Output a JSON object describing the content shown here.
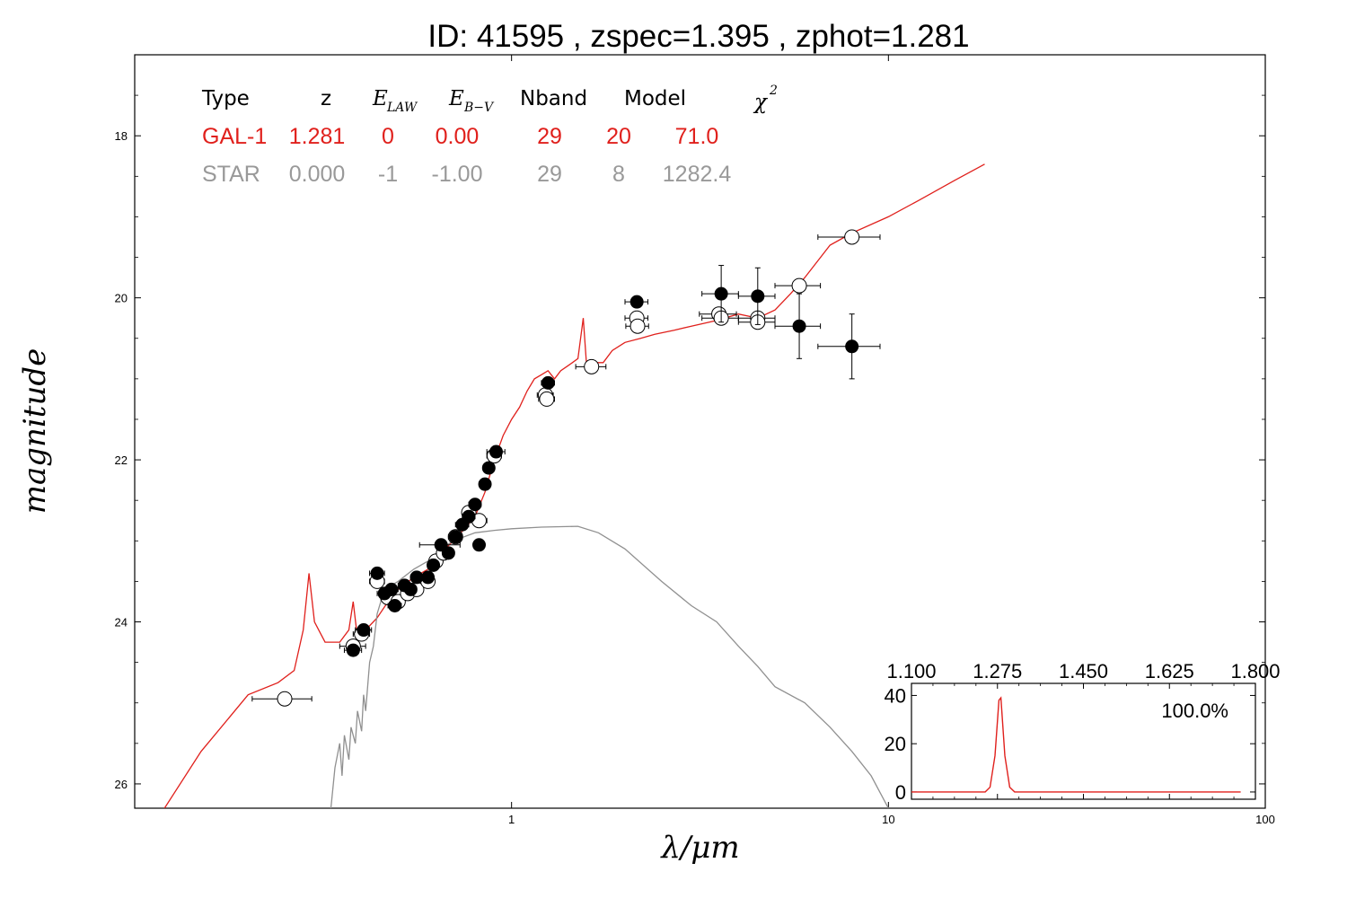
{
  "chart_data": [
    {
      "type": "line",
      "title": "ID:  41595 , zspec=1.395 , zphot=1.281",
      "xlabel": "λ/μm",
      "ylabel": "magnitude",
      "x_scale": "log",
      "xlim": [
        0.1,
        100
      ],
      "ylim": [
        26.3,
        17.0
      ],
      "y_inverted": true,
      "x_tick_labels": [
        "1",
        "10",
        "100"
      ],
      "x_tick_values": [
        1,
        10,
        100
      ],
      "y_tick_labels": [
        "18",
        "20",
        "22",
        "24",
        "26"
      ],
      "y_tick_values": [
        18,
        20,
        22,
        24,
        26
      ],
      "table": {
        "headers": [
          "Type",
          "z",
          "E",
          "E",
          "Nband",
          "Model",
          "χ"
        ],
        "header_subscripts": [
          "LAW",
          "B−V"
        ],
        "header_superscript": "2",
        "rows": [
          {
            "cells": [
              "GAL-1",
              "1.281",
              "0",
              "0.00",
              "29",
              "20",
              "71.0"
            ],
            "color": "#e0201c"
          },
          {
            "cells": [
              "STAR",
              "0.000",
              "-1",
              "-1.00",
              "29",
              "8",
              "1282.4"
            ],
            "color": "#999999"
          }
        ]
      },
      "series": [
        {
          "name": "GAL-1",
          "color": "#e0201c",
          "points": [
            [
              0.12,
              26.3
            ],
            [
              0.15,
              25.6
            ],
            [
              0.2,
              24.9
            ],
            [
              0.24,
              24.75
            ],
            [
              0.265,
              24.6
            ],
            [
              0.28,
              24.1
            ],
            [
              0.29,
              23.4
            ],
            [
              0.3,
              24.0
            ],
            [
              0.32,
              24.25
            ],
            [
              0.35,
              24.25
            ],
            [
              0.37,
              24.1
            ],
            [
              0.38,
              23.75
            ],
            [
              0.39,
              24.2
            ],
            [
              0.41,
              24.1
            ],
            [
              0.44,
              23.95
            ],
            [
              0.47,
              23.75
            ],
            [
              0.5,
              23.6
            ],
            [
              0.55,
              23.45
            ],
            [
              0.6,
              23.35
            ],
            [
              0.65,
              23.15
            ],
            [
              0.7,
              23.0
            ],
            [
              0.75,
              22.85
            ],
            [
              0.8,
              22.7
            ],
            [
              0.85,
              22.4
            ],
            [
              0.9,
              22.0
            ],
            [
              0.95,
              21.7
            ],
            [
              1.0,
              21.5
            ],
            [
              1.05,
              21.35
            ],
            [
              1.1,
              21.15
            ],
            [
              1.15,
              21.0
            ],
            [
              1.2,
              20.95
            ],
            [
              1.25,
              20.9
            ],
            [
              1.3,
              21.0
            ],
            [
              1.35,
              20.9
            ],
            [
              1.4,
              20.85
            ],
            [
              1.45,
              20.8
            ],
            [
              1.5,
              20.75
            ],
            [
              1.55,
              20.25
            ],
            [
              1.58,
              20.8
            ],
            [
              1.65,
              20.8
            ],
            [
              1.75,
              20.8
            ],
            [
              1.85,
              20.65
            ],
            [
              2.0,
              20.55
            ],
            [
              2.2,
              20.5
            ],
            [
              2.4,
              20.45
            ],
            [
              2.7,
              20.4
            ],
            [
              3.0,
              20.35
            ],
            [
              3.5,
              20.28
            ],
            [
              4.0,
              20.2
            ],
            [
              4.5,
              20.25
            ],
            [
              5.0,
              20.15
            ],
            [
              5.5,
              19.95
            ],
            [
              6.0,
              19.75
            ],
            [
              7.0,
              19.35
            ],
            [
              8.0,
              19.2
            ],
            [
              10.0,
              19.0
            ],
            [
              12.0,
              18.8
            ],
            [
              15.0,
              18.55
            ],
            [
              18.0,
              18.35
            ]
          ]
        },
        {
          "name": "STAR",
          "color": "#909090",
          "points": [
            [
              0.33,
              26.4
            ],
            [
              0.34,
              25.8
            ],
            [
              0.35,
              25.5
            ],
            [
              0.355,
              25.9
            ],
            [
              0.36,
              25.4
            ],
            [
              0.37,
              25.7
            ],
            [
              0.375,
              25.3
            ],
            [
              0.385,
              25.5
            ],
            [
              0.39,
              25.1
            ],
            [
              0.4,
              25.35
            ],
            [
              0.405,
              24.9
            ],
            [
              0.41,
              25.1
            ],
            [
              0.42,
              24.5
            ],
            [
              0.43,
              24.3
            ],
            [
              0.44,
              23.9
            ],
            [
              0.46,
              23.6
            ],
            [
              0.5,
              23.5
            ],
            [
              0.55,
              23.35
            ],
            [
              0.6,
              23.25
            ],
            [
              0.65,
              23.1
            ],
            [
              0.7,
              23.0
            ],
            [
              0.8,
              22.9
            ],
            [
              0.9,
              22.87
            ],
            [
              1.0,
              22.85
            ],
            [
              1.2,
              22.83
            ],
            [
              1.5,
              22.82
            ],
            [
              1.7,
              22.9
            ],
            [
              2.0,
              23.1
            ],
            [
              2.5,
              23.5
            ],
            [
              3.0,
              23.8
            ],
            [
              3.5,
              24.0
            ],
            [
              4.0,
              24.3
            ],
            [
              4.5,
              24.55
            ],
            [
              5.0,
              24.8
            ],
            [
              6.0,
              25.0
            ],
            [
              7.0,
              25.3
            ],
            [
              8.0,
              25.6
            ],
            [
              9.0,
              25.9
            ],
            [
              10.0,
              26.3
            ]
          ]
        }
      ],
      "photometry_filled": [
        {
          "x": 0.38,
          "y": 24.35,
          "xerr": 0.02,
          "yerr": 0.05
        },
        {
          "x": 0.405,
          "y": 24.1,
          "xerr": 0.02,
          "yerr": 0.05
        },
        {
          "x": 0.44,
          "y": 23.4,
          "xerr": 0.02,
          "yerr": 0.05
        },
        {
          "x": 0.46,
          "y": 23.65,
          "xerr": 0.02,
          "yerr": 0.05
        },
        {
          "x": 0.48,
          "y": 23.6,
          "xerr": 0.02,
          "yerr": 0.05
        },
        {
          "x": 0.49,
          "y": 23.8,
          "xerr": 0.02,
          "yerr": 0.05
        },
        {
          "x": 0.52,
          "y": 23.55,
          "xerr": 0.02,
          "yerr": 0.05
        },
        {
          "x": 0.54,
          "y": 23.6,
          "xerr": 0.02,
          "yerr": 0.05
        },
        {
          "x": 0.56,
          "y": 23.45,
          "xerr": 0.02,
          "yerr": 0.05
        },
        {
          "x": 0.6,
          "y": 23.45,
          "xerr": 0.02,
          "yerr": 0.05
        },
        {
          "x": 0.62,
          "y": 23.3,
          "xerr": 0.02,
          "yerr": 0.05
        },
        {
          "x": 0.65,
          "y": 23.05,
          "xerr": 0.08,
          "yerr": 0.05
        },
        {
          "x": 0.68,
          "y": 23.15,
          "xerr": 0.02,
          "yerr": 0.05
        },
        {
          "x": 0.71,
          "y": 22.95,
          "xerr": 0.03,
          "yerr": 0.05
        },
        {
          "x": 0.74,
          "y": 22.8,
          "xerr": 0.03,
          "yerr": 0.05
        },
        {
          "x": 0.77,
          "y": 22.7,
          "xerr": 0.03,
          "yerr": 0.05
        },
        {
          "x": 0.8,
          "y": 22.55,
          "xerr": 0.03,
          "yerr": 0.05
        },
        {
          "x": 0.82,
          "y": 23.05,
          "xerr": 0.02,
          "yerr": 0.05
        },
        {
          "x": 0.85,
          "y": 22.3,
          "xerr": 0.03,
          "yerr": 0.05
        },
        {
          "x": 0.87,
          "y": 22.1,
          "xerr": 0.03,
          "yerr": 0.05
        },
        {
          "x": 0.91,
          "y": 21.9,
          "xerr": 0.05,
          "yerr": 0.05
        },
        {
          "x": 1.25,
          "y": 21.05,
          "xerr": 0.05,
          "yerr": 0.05
        },
        {
          "x": 2.15,
          "y": 20.05,
          "xerr": 0.15,
          "yerr": 0.05
        },
        {
          "x": 3.6,
          "y": 19.95,
          "xerr": 0.4,
          "yerr": 0.35
        },
        {
          "x": 4.5,
          "y": 19.98,
          "xerr": 0.5,
          "yerr": 0.35
        },
        {
          "x": 5.8,
          "y": 20.35,
          "xerr": 0.8,
          "yerr": 0.4
        },
        {
          "x": 8.0,
          "y": 20.6,
          "xerr": 1.5,
          "yerr": 0.4
        }
      ],
      "photometry_open": [
        {
          "x": 0.25,
          "y": 24.95,
          "xerr": 0.045
        },
        {
          "x": 0.38,
          "y": 24.3,
          "xerr": 0.03
        },
        {
          "x": 0.4,
          "y": 24.15,
          "xerr": 0.02
        },
        {
          "x": 0.44,
          "y": 23.5,
          "xerr": 0.02
        },
        {
          "x": 0.47,
          "y": 23.7,
          "xerr": 0.02
        },
        {
          "x": 0.5,
          "y": 23.75,
          "xerr": 0.02
        },
        {
          "x": 0.53,
          "y": 23.65,
          "xerr": 0.02
        },
        {
          "x": 0.56,
          "y": 23.6,
          "xerr": 0.02
        },
        {
          "x": 0.6,
          "y": 23.5,
          "xerr": 0.02
        },
        {
          "x": 0.63,
          "y": 23.25,
          "xerr": 0.02
        },
        {
          "x": 0.66,
          "y": 23.15,
          "xerr": 0.02
        },
        {
          "x": 0.71,
          "y": 22.95,
          "xerr": 0.02
        },
        {
          "x": 0.77,
          "y": 22.65,
          "xerr": 0.03
        },
        {
          "x": 0.82,
          "y": 22.75,
          "xerr": 0.04
        },
        {
          "x": 0.9,
          "y": 21.95,
          "xerr": 0.04
        },
        {
          "x": 1.23,
          "y": 21.2,
          "xerr": 0.06
        },
        {
          "x": 1.24,
          "y": 21.25,
          "xerr": 0.06
        },
        {
          "x": 1.63,
          "y": 20.85,
          "xerr": 0.15
        },
        {
          "x": 2.15,
          "y": 20.25,
          "xerr": 0.15
        },
        {
          "x": 2.16,
          "y": 20.35,
          "xerr": 0.15
        },
        {
          "x": 3.55,
          "y": 20.2,
          "xerr": 0.4
        },
        {
          "x": 3.6,
          "y": 20.25,
          "xerr": 0.4
        },
        {
          "x": 4.5,
          "y": 20.25,
          "xerr": 0.5
        },
        {
          "x": 4.5,
          "y": 20.3,
          "xerr": 0.5
        },
        {
          "x": 5.8,
          "y": 19.85,
          "xerr": 0.8
        },
        {
          "x": 8.0,
          "y": 19.25,
          "xerr": 1.5
        }
      ]
    },
    {
      "type": "line",
      "inset": true,
      "annotation": "100.0%",
      "xlim": [
        1.1,
        1.8
      ],
      "ylim": [
        -3,
        45
      ],
      "x_tick_labels": [
        "1.100",
        "1.275",
        "1.450",
        "1.625",
        "1.800"
      ],
      "x_tick_values": [
        1.1,
        1.275,
        1.45,
        1.625,
        1.8
      ],
      "y_tick_labels": [
        "0",
        "20",
        "40"
      ],
      "y_tick_values": [
        0,
        20,
        40
      ],
      "series": [
        {
          "color": "#e0201c",
          "points": [
            [
              1.1,
              0
            ],
            [
              1.25,
              0
            ],
            [
              1.26,
              2
            ],
            [
              1.27,
              15
            ],
            [
              1.278,
              38
            ],
            [
              1.282,
              39
            ],
            [
              1.29,
              15
            ],
            [
              1.3,
              2
            ],
            [
              1.31,
              0
            ],
            [
              1.77,
              0
            ]
          ]
        }
      ]
    }
  ]
}
